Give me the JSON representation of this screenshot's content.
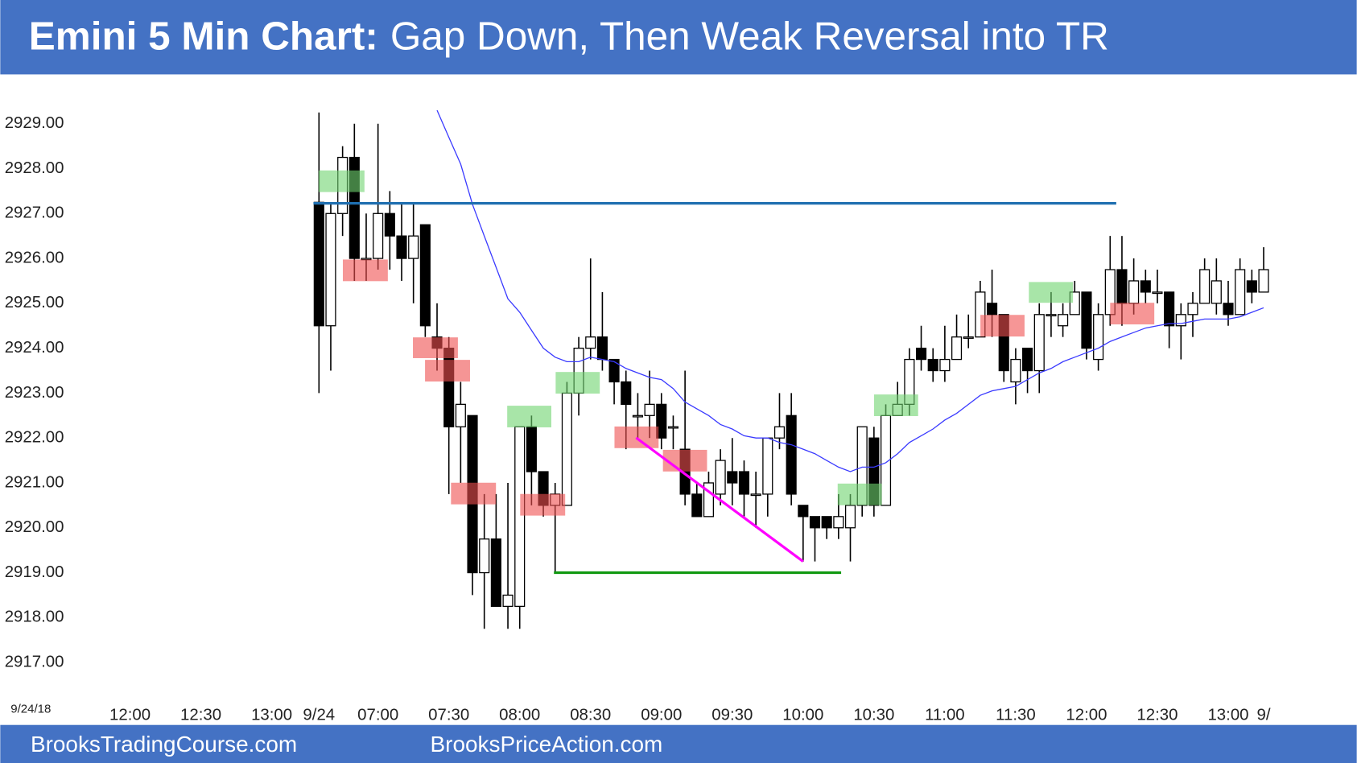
{
  "chart_data": {
    "type": "candlestick",
    "title": "Emini 5 Min Chart:",
    "subtitle": "Gap Down, Then Weak Reversal into TR",
    "date_label": "9/24/18",
    "footer_left": "BrooksTradingCourse.com",
    "footer_right": "BrooksPriceAction.com",
    "categories": [
      "12:00",
      null,
      null,
      null,
      null,
      null,
      "12:30",
      null,
      null,
      null,
      null,
      null,
      "13:00",
      null,
      null,
      null,
      "9/24",
      null,
      null,
      null,
      null,
      "07:00",
      null,
      null,
      null,
      null,
      null,
      "07:30",
      null,
      null,
      null,
      null,
      null,
      "08:00",
      null,
      null,
      null,
      null,
      null,
      "08:30",
      null,
      null,
      null,
      null,
      null,
      "09:00",
      null,
      null,
      null,
      null,
      null,
      "09:30",
      null,
      null,
      null,
      null,
      null,
      "10:00",
      null,
      null,
      null,
      null,
      null,
      "10:30",
      null,
      null,
      null,
      null,
      null,
      "11:00",
      null,
      null,
      null,
      null,
      null,
      "11:30",
      null,
      null,
      null,
      null,
      null,
      "12:00",
      null,
      null,
      null,
      null,
      null,
      "12:30",
      null,
      null,
      null,
      null,
      null,
      "13:00",
      null,
      null,
      "9/"
    ],
    "open": [
      null,
      null,
      null,
      null,
      null,
      null,
      null,
      null,
      null,
      null,
      null,
      null,
      null,
      null,
      null,
      null,
      2927.25,
      2924.5,
      2927,
      2928.25,
      2926,
      2926,
      2927,
      2926.5,
      2926,
      2926.75,
      2924.25,
      2924,
      2922.25,
      2922.5,
      2919,
      2919.75,
      2918.25,
      2918.25,
      2922.25,
      2921.25,
      2920.5,
      2920.5,
      2923,
      2924,
      2924.25,
      2923.75,
      2923.25,
      2922.5,
      2922.5,
      2922.75,
      2922.25,
      2921.75,
      2920.75,
      2920.25,
      2920.75,
      2921.25,
      2921.25,
      2920.75,
      2920.75,
      2922,
      2922.5,
      2920.5,
      2920.25,
      2920.25,
      2920,
      2920,
      2920.5,
      2922,
      2920.5,
      2922.5,
      2922.75,
      2924,
      2923.75,
      2923.5,
      2923.75,
      2924.25,
      2924.25,
      2925,
      2924.75,
      2923.25,
      2924,
      2923.5,
      2924.75,
      2924.5,
      2924.75,
      2925.25,
      2923.75,
      2924.75,
      2925.75,
      2925,
      2925.5,
      2925.25,
      2925.25,
      2924.5,
      2924.75,
      2925,
      2925,
      2925,
      2924.75,
      2925.5,
      2925.25
    ],
    "high": [
      null,
      null,
      null,
      null,
      null,
      null,
      null,
      null,
      null,
      null,
      null,
      null,
      null,
      null,
      null,
      null,
      2929.25,
      2927.25,
      2928.5,
      2929,
      2927,
      2929,
      2927.5,
      2927.25,
      2927.25,
      2926.75,
      2925,
      2924.25,
      2923.25,
      2922.5,
      2920.75,
      2920.75,
      2921,
      2922.25,
      2922.5,
      2921.25,
      2921,
      2923.25,
      2924.25,
      2926,
      2925.25,
      2923.75,
      2923.5,
      2923,
      2923.5,
      2923,
      2922.5,
      2923.5,
      2921,
      2921.25,
      2921.75,
      2922,
      2921.5,
      2921.25,
      2922,
      2923,
      2923,
      2920.5,
      2920.25,
      2920.25,
      2920.75,
      2920.75,
      2922.25,
      2922.25,
      2922.75,
      2923.25,
      2924,
      2924.5,
      2924,
      2924.5,
      2924.75,
      2924.75,
      2925.5,
      2925.75,
      2924.75,
      2924,
      2924,
      2925,
      2925.25,
      2925,
      2925.5,
      2925.25,
      2925,
      2926.5,
      2926.5,
      2926,
      2925.75,
      2925.75,
      2925.25,
      2925,
      2925.25,
      2926,
      2926,
      2925.5,
      2926,
      2925.75,
      2926.25
    ],
    "low": [
      null,
      null,
      null,
      null,
      null,
      null,
      null,
      null,
      null,
      null,
      null,
      null,
      null,
      null,
      null,
      null,
      2923,
      2923.5,
      2926.5,
      2925.5,
      2925.5,
      2925.75,
      2925.75,
      2925.5,
      2925,
      2924.25,
      2923.5,
      2920.75,
      2921,
      2918.5,
      2917.75,
      2918.25,
      2917.75,
      2917.75,
      2920.5,
      2920.25,
      2919,
      2920.5,
      2922.5,
      2923.75,
      2923.5,
      2922.75,
      2921.75,
      2922,
      2922,
      2921.75,
      2921.75,
      2920.5,
      2920.25,
      2920.25,
      2920.5,
      2920.5,
      2920.25,
      2920,
      2920.25,
      2921.75,
      2920.5,
      2919.25,
      2919.25,
      2919.75,
      2919.75,
      2919.25,
      2920.25,
      2920.25,
      2920.5,
      2922.5,
      2922.5,
      2923.5,
      2923.25,
      2923.25,
      2923.75,
      2924,
      2924.25,
      2924.25,
      2923.25,
      2922.75,
      2923,
      2923,
      2924.25,
      2924.25,
      2924.75,
      2923.75,
      2923.5,
      2924.5,
      2924.5,
      2924.75,
      2925,
      2925,
      2924,
      2923.75,
      2924.25,
      2925,
      2924.75,
      2924.5,
      2924.75,
      2925,
      2925.25
    ],
    "close": [
      null,
      null,
      null,
      null,
      null,
      null,
      null,
      null,
      null,
      null,
      null,
      null,
      null,
      null,
      null,
      null,
      2924.5,
      2927,
      2928.25,
      2926,
      2926,
      2927,
      2926.5,
      2926,
      2926.5,
      2924.5,
      2924,
      2922.25,
      2922.75,
      2919,
      2919.75,
      2918.25,
      2918.5,
      2922.25,
      2921.25,
      2920.5,
      2920.75,
      2923,
      2924,
      2924.25,
      2923.75,
      2923.25,
      2922.75,
      2922.5,
      2922.75,
      2922,
      2922.25,
      2920.75,
      2920.25,
      2921,
      2921.5,
      2921,
      2920.75,
      2920.75,
      2922,
      2922.25,
      2920.75,
      2920.25,
      2920,
      2920,
      2920.25,
      2920.5,
      2922.25,
      2920.5,
      2922.5,
      2922.75,
      2923.75,
      2923.75,
      2923.5,
      2923.75,
      2924.25,
      2924.25,
      2925.25,
      2924.75,
      2923.5,
      2923.75,
      2923.5,
      2924.75,
      2924.75,
      2924.75,
      2925.25,
      2924,
      2924.75,
      2925.75,
      2925,
      2925.5,
      2925.25,
      2925.25,
      2924.5,
      2924.75,
      2925,
      2925.75,
      2925.5,
      2924.75,
      2925.75,
      2925.25,
      2925.75
    ],
    "ma": [
      null,
      null,
      null,
      null,
      null,
      null,
      null,
      null,
      null,
      null,
      null,
      null,
      null,
      null,
      null,
      null,
      null,
      null,
      null,
      null,
      null,
      null,
      null,
      null,
      null,
      null,
      2929.3,
      2928.7,
      2928.1,
      2927.2,
      2926.5,
      2925.8,
      2925.1,
      2924.8,
      2924.4,
      2924.0,
      2923.8,
      2923.7,
      2923.7,
      2923.8,
      2923.75,
      2923.7,
      2923.55,
      2923.45,
      2923.35,
      2923.3,
      2923.1,
      2922.8,
      2922.65,
      2922.5,
      2922.3,
      2922.2,
      2922.05,
      2922.0,
      2922.0,
      2921.9,
      2921.85,
      2921.75,
      2921.65,
      2921.5,
      2921.35,
      2921.25,
      2921.35,
      2921.35,
      2921.45,
      2921.65,
      2921.9,
      2922.05,
      2922.2,
      2922.4,
      2922.55,
      2922.75,
      2922.95,
      2923.05,
      2923.1,
      2923.15,
      2923.3,
      2923.45,
      2923.55,
      2923.7,
      2923.8,
      2923.9,
      2924.0,
      2924.15,
      2924.25,
      2924.35,
      2924.45,
      2924.5,
      2924.55,
      2924.55,
      2924.6,
      2924.65,
      2924.65,
      2924.65,
      2924.7,
      2924.8,
      2924.9
    ],
    "up_color": "#ffffff",
    "down_color": "#000000",
    "ma_color": "#3a3aff",
    "ylim": [
      2916.5,
      2929.75
    ],
    "yticks": [
      {
        "value": 2929,
        "label": "2929.00"
      },
      {
        "value": 2928,
        "label": "2928.00"
      },
      {
        "value": 2927,
        "label": "2927.00"
      },
      {
        "value": 2926,
        "label": "2926.00"
      },
      {
        "value": 2925,
        "label": "2925.00"
      },
      {
        "value": 2924,
        "label": "2924.00"
      },
      {
        "value": 2923,
        "label": "2923.00"
      },
      {
        "value": 2922,
        "label": "2922.00"
      },
      {
        "value": 2921,
        "label": "2921.00"
      },
      {
        "value": 2920,
        "label": "2920.00"
      },
      {
        "value": 2919,
        "label": "2919.00"
      },
      {
        "value": 2918,
        "label": "2918.00"
      },
      {
        "value": 2917,
        "label": "2917.00"
      }
    ],
    "grid": false
  }
}
